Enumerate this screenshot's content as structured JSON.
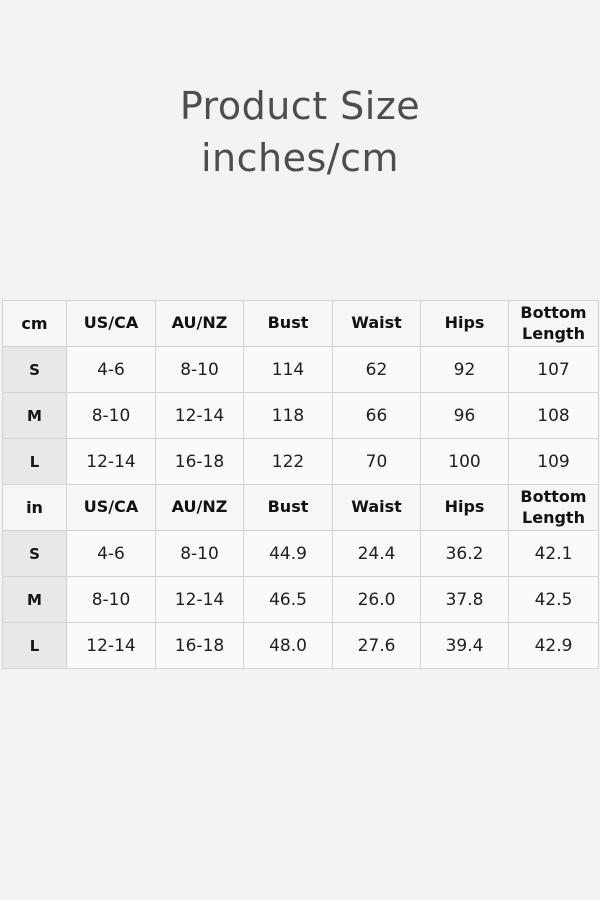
{
  "title": {
    "line1": "Product Size",
    "line2": "inches/cm"
  },
  "colors": {
    "page_bg": "#f4f3f1",
    "header_cell_bg": "#f7f6f4",
    "size_column_bg": "#e9e8e6",
    "value_cell_bg": "#fbfaf9",
    "grid_border": "#d6d4d2",
    "title_text": "#4d4d4d",
    "table_text": "#202020"
  },
  "chart_data": {
    "type": "table",
    "title": "Product Size inches/cm",
    "sections": [
      {
        "unit": "cm",
        "headers": [
          "US/CA",
          "AU/NZ",
          "Bust",
          "Waist",
          "Hips",
          "Bottom Length"
        ],
        "rows": [
          {
            "size": "S",
            "values": [
              "4-6",
              "8-10",
              "114",
              "62",
              "92",
              "107"
            ]
          },
          {
            "size": "M",
            "values": [
              "8-10",
              "12-14",
              "118",
              "66",
              "96",
              "108"
            ]
          },
          {
            "size": "L",
            "values": [
              "12-14",
              "16-18",
              "122",
              "70",
              "100",
              "109"
            ]
          }
        ]
      },
      {
        "unit": "in",
        "headers": [
          "US/CA",
          "AU/NZ",
          "Bust",
          "Waist",
          "Hips",
          "Bottom Length"
        ],
        "rows": [
          {
            "size": "S",
            "values": [
              "4-6",
              "8-10",
              "44.9",
              "24.4",
              "36.2",
              "42.1"
            ]
          },
          {
            "size": "M",
            "values": [
              "8-10",
              "12-14",
              "46.5",
              "26.0",
              "37.8",
              "42.5"
            ]
          },
          {
            "size": "L",
            "values": [
              "12-14",
              "16-18",
              "48.0",
              "27.6",
              "39.4",
              "42.9"
            ]
          }
        ]
      }
    ]
  }
}
